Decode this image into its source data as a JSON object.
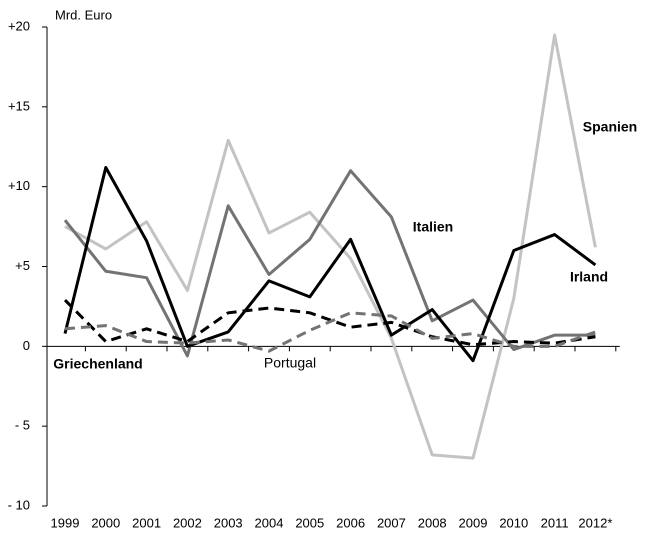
{
  "chart_data": {
    "type": "line",
    "y_label": "Mrd. Euro",
    "categories": [
      "1999",
      "2000",
      "2001",
      "2002",
      "2003",
      "2004",
      "2005",
      "2006",
      "2007",
      "2008",
      "2009",
      "2010",
      "2011",
      "2012*"
    ],
    "ylim": [
      -10,
      20
    ],
    "yticks": [
      {
        "value": 20,
        "label": "+20"
      },
      {
        "value": 15,
        "label": "+15"
      },
      {
        "value": 10,
        "label": "+10"
      },
      {
        "value": 5,
        "label": "+5"
      },
      0,
      {
        "value": -5,
        "label": "- 5"
      },
      {
        "value": -10,
        "label": "- 10"
      }
    ],
    "series": [
      {
        "name": "Spanien",
        "color": "#c3c3c3",
        "dash": false,
        "values": [
          7.5,
          6.1,
          7.8,
          3.5,
          12.9,
          7.1,
          8.4,
          5.5,
          0.5,
          -6.8,
          -7.0,
          3.0,
          19.5,
          6.2
        ]
      },
      {
        "name": "Italien",
        "color": "#737373",
        "dash": false,
        "values": [
          7.9,
          4.7,
          4.3,
          -0.6,
          8.8,
          4.5,
          6.7,
          11.0,
          8.1,
          1.6,
          2.9,
          -0.2,
          0.7,
          0.7
        ]
      },
      {
        "name": "Irland",
        "color": "#000000",
        "dash": false,
        "values": [
          0.8,
          11.2,
          6.6,
          0.0,
          0.9,
          4.1,
          3.1,
          6.7,
          0.7,
          2.3,
          -0.9,
          6.0,
          7.0,
          5.1
        ]
      },
      {
        "name": "Griechenland",
        "color": "#000000",
        "dash": true,
        "values": [
          2.9,
          0.3,
          1.1,
          0.3,
          2.1,
          2.4,
          2.1,
          1.2,
          1.5,
          0.6,
          0.1,
          0.3,
          0.2,
          0.6
        ]
      },
      {
        "name": "Portugal",
        "color": "#737373",
        "dash": true,
        "values": [
          1.1,
          1.3,
          0.3,
          0.2,
          0.4,
          -0.3,
          1.0,
          2.1,
          1.9,
          0.5,
          0.8,
          0.0,
          0.0,
          0.9
        ]
      }
    ]
  }
}
